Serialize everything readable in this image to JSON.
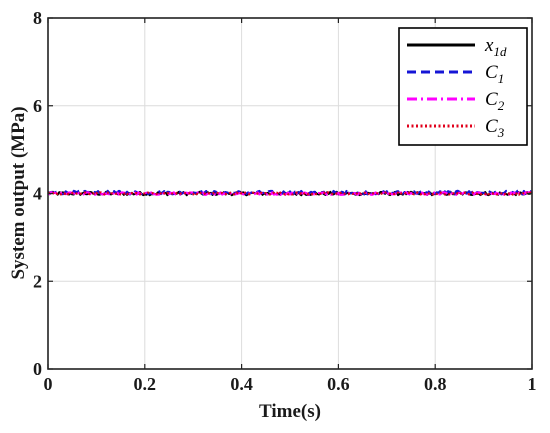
{
  "chart_data": {
    "type": "line",
    "xlabel": "Time(s)",
    "ylabel": "System output (MPa)",
    "xlim": [
      0,
      1
    ],
    "ylim": [
      0,
      8
    ],
    "x_ticks": [
      "0",
      "0.2",
      "0.4",
      "0.6",
      "0.8",
      "1"
    ],
    "y_ticks": [
      "0",
      "2",
      "4",
      "6",
      "8"
    ],
    "grid": true,
    "legend_position": "top-right",
    "series": [
      {
        "name": "x_{1d}",
        "color": "#000000",
        "dash": "solid",
        "value": 4.0,
        "noise": 0.04
      },
      {
        "name": "C_1",
        "color": "#1515d6",
        "dash": "dashed",
        "value": 4.02,
        "noise": 0.04
      },
      {
        "name": "C_2",
        "color": "#ff00ff",
        "dash": "dashdot",
        "value": 4.0,
        "noise": 0.03
      },
      {
        "name": "C_3",
        "color": "#e0001b",
        "dash": "dotted",
        "value": 4.0,
        "noise": 0.025
      }
    ]
  }
}
